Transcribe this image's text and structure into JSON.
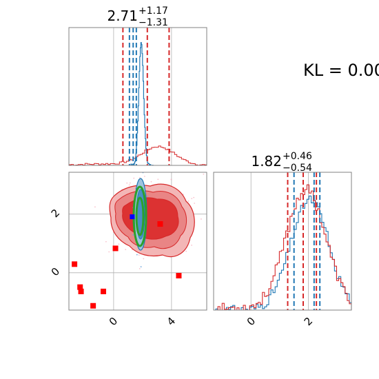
{
  "chart_data": {
    "type": "corner",
    "annotation": "KL = 0.00",
    "params": [
      {
        "title_main": "2.71",
        "title_plus": "+1.17",
        "title_minus": "−1.31",
        "xlim": [
          -1.5,
          5.9
        ]
      },
      {
        "title_main": "1.82",
        "title_plus": "+0.46",
        "title_minus": "−0.54",
        "xlim": [
          -1.3,
          3.5
        ]
      }
    ],
    "panel_2d": {
      "xlim": [
        -1.5,
        5.9
      ],
      "ylim": [
        -1.3,
        3.5
      ],
      "xticks": [
        "0",
        "4"
      ],
      "yticks": [
        "2",
        "0"
      ],
      "ref_marker": {
        "x": 1.9,
        "y": 1.95,
        "color": "#0000ff"
      },
      "outlier_points": [
        {
          "x": -1.2,
          "y": 0.3
        },
        {
          "x": -0.9,
          "y": -0.5
        },
        {
          "x": -0.85,
          "y": -0.65
        },
        {
          "x": -0.2,
          "y": -1.15
        },
        {
          "x": 0.35,
          "y": -0.65
        },
        {
          "x": 1.0,
          "y": 0.85
        },
        {
          "x": 3.4,
          "y": 1.7
        },
        {
          "x": 4.4,
          "y": -0.1
        }
      ],
      "outlier_color": "#ff0000"
    },
    "panel_1d_b": {
      "xticks": [
        "0",
        "2"
      ]
    },
    "quantile_lines": {
      "red": {
        "p0": [
          1.4,
          2.71,
          3.88
        ],
        "p1": [
          1.28,
          1.82,
          2.28
        ]
      },
      "blue": {
        "p0": [
          1.75,
          1.95,
          2.12
        ],
        "p1": [
          1.5,
          2.2,
          2.4
        ]
      }
    },
    "series": [
      {
        "color": "#d62728"
      },
      {
        "color": "#1f77b4"
      },
      {
        "color": "#2ca02c"
      }
    ],
    "grid": true
  }
}
